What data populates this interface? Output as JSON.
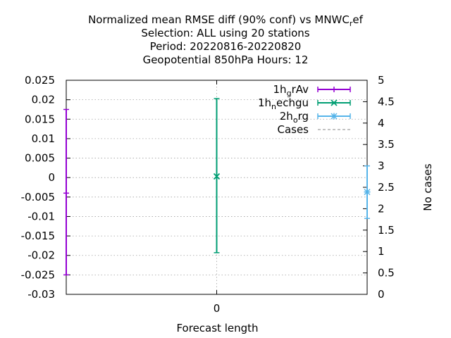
{
  "chart_data": {
    "type": "errorbar",
    "title_lines": [
      "Normalized mean RMSE diff (90% conf) vs MNWC",
      "Selection: ALL using    20 stations",
      "Period: 20220816-20220820",
      "Geopotential 850hPa   Hours:  12"
    ],
    "title_ref_suffix": "ref",
    "xlabel": "Forecast length",
    "ylabel": "",
    "y2label": "No cases",
    "x_ticks": [
      "0"
    ],
    "xlim": [
      -0.5,
      0.5
    ],
    "ylim": [
      -0.03,
      0.025
    ],
    "y_ticks": [
      "0.025",
      "0.02",
      "0.015",
      "0.01",
      "0.005",
      "0",
      "-0.005",
      "-0.01",
      "-0.015",
      "-0.02",
      "-0.025",
      "-0.03"
    ],
    "y2lim": [
      0,
      5
    ],
    "y2_ticks": [
      "5",
      "4.5",
      "4",
      "3.5",
      "3",
      "2.5",
      "2",
      "1.5",
      "1",
      "0.5",
      "0"
    ],
    "grid": true,
    "legend_position": "top-right",
    "series": [
      {
        "name": "1h_grAv",
        "legend_main": "1h",
        "legend_sub": "g",
        "legend_rest": "rAv",
        "color": "#9400d3",
        "x": -0.5,
        "center": null,
        "low": -0.025,
        "high": 0.0175,
        "marker_y": -0.004
      },
      {
        "name": "1h_nechgu",
        "legend_main": "1h",
        "legend_sub": "n",
        "legend_rest": "echgu",
        "color": "#009e73",
        "x": 0,
        "center": 0.0003,
        "low": -0.0193,
        "high": 0.0203
      },
      {
        "name": "2h_org",
        "legend_main": "2h",
        "legend_sub": "o",
        "legend_rest": "rg",
        "color": "#56b4e9",
        "x": 0.5,
        "center": -0.0037,
        "low": -0.0105,
        "high": 0.003
      },
      {
        "name": "Cases",
        "legend_main": "Cases",
        "legend_sub": "",
        "legend_rest": "",
        "color": "#a0a0a0",
        "dashed": true
      }
    ]
  }
}
